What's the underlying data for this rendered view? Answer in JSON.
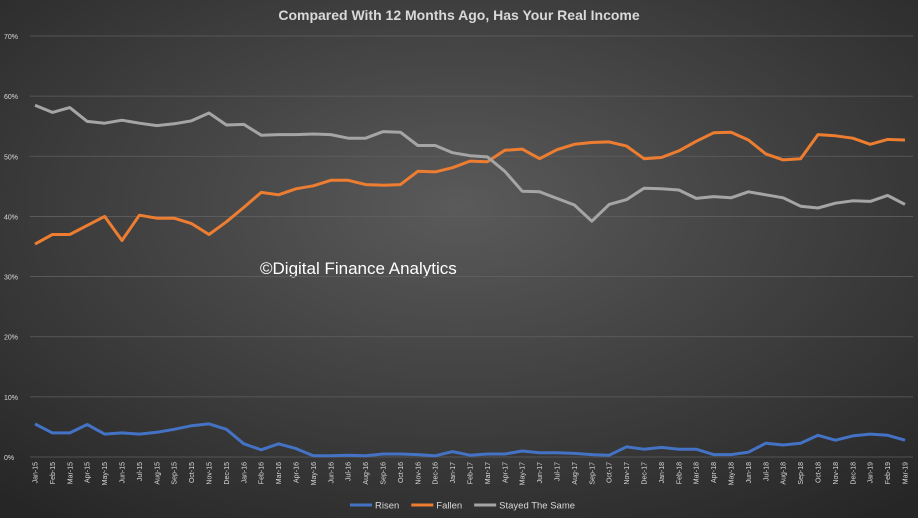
{
  "chart_data": {
    "type": "line",
    "title": "Compared With 12 Months Ago, Has Your Real Income",
    "annotation": "©Digital Finance Analytics",
    "categories": [
      "Jan-15",
      "Feb-15",
      "Mar-15",
      "Apr-15",
      "May-15",
      "Jun-15",
      "Jul-15",
      "Aug-15",
      "Sep-15",
      "Oct-15",
      "Nov-15",
      "Dec-15",
      "Jan-16",
      "Feb-16",
      "Mar-16",
      "Apr-16",
      "May-16",
      "Jun-16",
      "Jul-16",
      "Aug-16",
      "Sep-16",
      "Oct-16",
      "Nov-16",
      "Dec-16",
      "Jan-17",
      "Feb-17",
      "Mar-17",
      "Apr-17",
      "May-17",
      "Jun-17",
      "Jul-17",
      "Aug-17",
      "Sep-17",
      "Oct-17",
      "Nov-17",
      "Dec-17",
      "Jan-18",
      "Feb-18",
      "Mar-18",
      "Apr-18",
      "May-18",
      "Jun-18",
      "Jul-18",
      "Aug-18",
      "Sep-18",
      "Oct-18",
      "Nov-18",
      "Dec-18",
      "Jan-19",
      "Feb-19",
      "Mar-19"
    ],
    "series": [
      {
        "name": "Risen",
        "color": "#4472c4",
        "values": [
          5.5,
          4.0,
          4.0,
          5.4,
          3.8,
          4.0,
          3.8,
          4.1,
          4.6,
          5.2,
          5.5,
          4.6,
          2.2,
          1.2,
          2.2,
          1.4,
          0.2,
          0.2,
          0.3,
          0.2,
          0.5,
          0.5,
          0.4,
          0.2,
          0.9,
          0.3,
          0.5,
          0.5,
          1.0,
          0.7,
          0.7,
          0.6,
          0.4,
          0.3,
          1.7,
          1.3,
          1.6,
          1.3,
          1.3,
          0.4,
          0.4,
          0.8,
          2.3,
          2.0,
          2.3,
          3.6,
          2.8,
          3.5,
          3.8,
          3.6,
          2.8
        ]
      },
      {
        "name": "Fallen",
        "color": "#ed7d31",
        "values": [
          35.4,
          37.0,
          37.0,
          38.5,
          40.0,
          36.0,
          40.2,
          39.7,
          39.7,
          38.8,
          37.0,
          39.1,
          41.5,
          44.0,
          43.6,
          44.6,
          45.1,
          46.0,
          46.0,
          45.3,
          45.2,
          45.3,
          47.5,
          47.4,
          48.1,
          49.2,
          49.1,
          51.0,
          51.2,
          49.6,
          51.1,
          52.0,
          52.3,
          52.4,
          51.7,
          49.6,
          49.8,
          50.9,
          52.5,
          53.9,
          54.0,
          52.7,
          50.4,
          49.4,
          49.6,
          53.6,
          53.4,
          53.0,
          52.0,
          52.8,
          52.7
        ]
      },
      {
        "name": "Stayed The Same",
        "color": "#a5a5a5",
        "values": [
          58.5,
          57.3,
          58.1,
          55.8,
          55.5,
          56.0,
          55.5,
          55.1,
          55.4,
          55.9,
          57.2,
          55.2,
          55.3,
          53.5,
          53.6,
          53.6,
          53.7,
          53.6,
          53.0,
          53.0,
          54.1,
          54.0,
          51.8,
          51.8,
          50.6,
          50.1,
          49.9,
          47.5,
          44.2,
          44.1,
          43.0,
          41.9,
          39.2,
          42.0,
          42.8,
          44.7,
          44.6,
          44.4,
          43.0,
          43.3,
          43.1,
          44.1,
          43.6,
          43.1,
          41.7,
          41.4,
          42.2,
          42.6,
          42.5,
          43.5,
          42.0
        ]
      }
    ],
    "ylim": [
      0,
      70
    ],
    "yticks": [
      {
        "value": 0,
        "label": "0%"
      },
      {
        "value": 10,
        "label": "10%"
      },
      {
        "value": 20,
        "label": "20%"
      },
      {
        "value": 30,
        "label": "30%"
      },
      {
        "value": 40,
        "label": "40%"
      },
      {
        "value": 50,
        "label": "50%"
      },
      {
        "value": 60,
        "label": "60%"
      },
      {
        "value": 70,
        "label": "70%"
      }
    ],
    "grid": true,
    "legend": "bottom"
  }
}
